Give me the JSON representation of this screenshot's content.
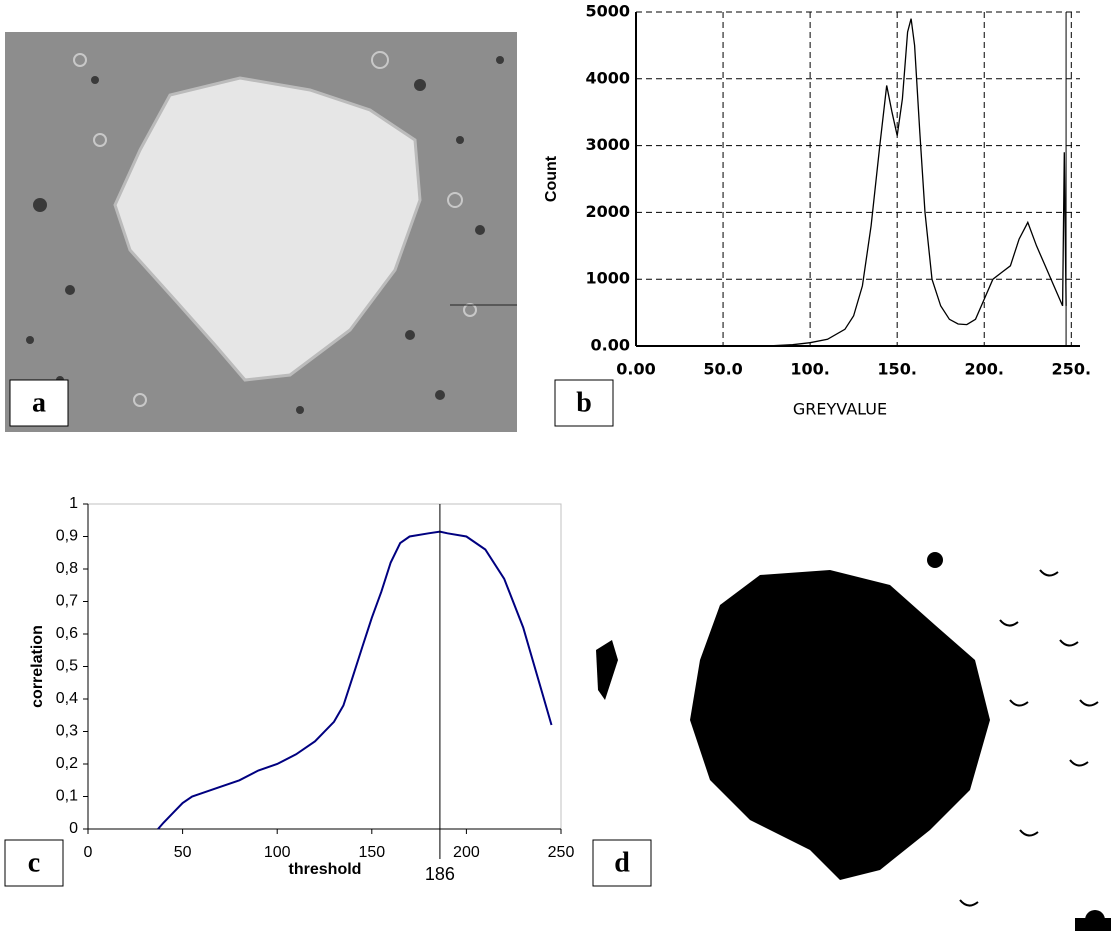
{
  "panel_labels": [
    "a",
    "b",
    "c",
    "d"
  ],
  "chart_data": [
    {
      "type": "line",
      "x_label": "GREYVALUE",
      "y_label": "Count",
      "color": "#000000",
      "grid": "dashed",
      "style": "b",
      "x": [
        0,
        75,
        90,
        100,
        110,
        120,
        125,
        130,
        135,
        140,
        144,
        147,
        150,
        153,
        156,
        158,
        160,
        163,
        166,
        170,
        175,
        180,
        185,
        190,
        195,
        200,
        205,
        210,
        215,
        220,
        225,
        230,
        235,
        240,
        245,
        246,
        247
      ],
      "values": [
        null,
        0,
        20,
        50,
        100,
        250,
        450,
        900,
        1800,
        3000,
        3900,
        3500,
        3150,
        3700,
        4700,
        4900,
        4500,
        3200,
        2000,
        1000,
        600,
        400,
        330,
        320,
        400,
        700,
        1000,
        1100,
        1200,
        1600,
        1850,
        1500,
        1200,
        900,
        600,
        2900,
        600
      ],
      "xlim": [
        0,
        255
      ],
      "ylim": [
        0,
        5000
      ],
      "xticks": [
        {
          "value": 0,
          "label": "0.00"
        },
        {
          "value": 50,
          "label": "50.0"
        },
        {
          "value": 100,
          "label": "100."
        },
        {
          "value": 150,
          "label": "150."
        },
        {
          "value": 200,
          "label": "200."
        },
        {
          "value": 250,
          "label": "250."
        }
      ],
      "yticks": [
        {
          "value": 0,
          "label": "0.00"
        },
        1000,
        2000,
        3000,
        4000,
        5000
      ],
      "vline": 247
    },
    {
      "type": "line",
      "x_label": "threshold",
      "y_label": "correlation",
      "color": "#000080",
      "grid": "none",
      "style": "c",
      "x": [
        37,
        40,
        45,
        50,
        55,
        60,
        70,
        80,
        90,
        100,
        110,
        120,
        130,
        135,
        140,
        145,
        150,
        155,
        160,
        165,
        170,
        180,
        186,
        190,
        200,
        210,
        220,
        230,
        240,
        245
      ],
      "values": [
        0,
        0.02,
        0.05,
        0.08,
        0.1,
        0.11,
        0.13,
        0.15,
        0.18,
        0.2,
        0.23,
        0.27,
        0.33,
        0.38,
        0.47,
        0.56,
        0.65,
        0.73,
        0.82,
        0.88,
        0.9,
        0.91,
        0.915,
        0.91,
        0.9,
        0.86,
        0.77,
        0.62,
        0.42,
        0.32
      ],
      "xlim": [
        0,
        250
      ],
      "ylim": [
        0,
        1
      ],
      "xticks": [
        0,
        50,
        100,
        150,
        200,
        250
      ],
      "yticks": [
        0,
        {
          "value": 0.1,
          "label": "0,1"
        },
        {
          "value": 0.2,
          "label": "0,2"
        },
        {
          "value": 0.3,
          "label": "0,3"
        },
        {
          "value": 0.4,
          "label": "0,4"
        },
        {
          "value": 0.5,
          "label": "0,5"
        },
        {
          "value": 0.6,
          "label": "0,6"
        },
        {
          "value": 0.7,
          "label": "0,7"
        },
        {
          "value": 0.8,
          "label": "0,8"
        },
        {
          "value": 0.9,
          "label": "0,9"
        },
        1
      ],
      "vline": 186
    }
  ]
}
